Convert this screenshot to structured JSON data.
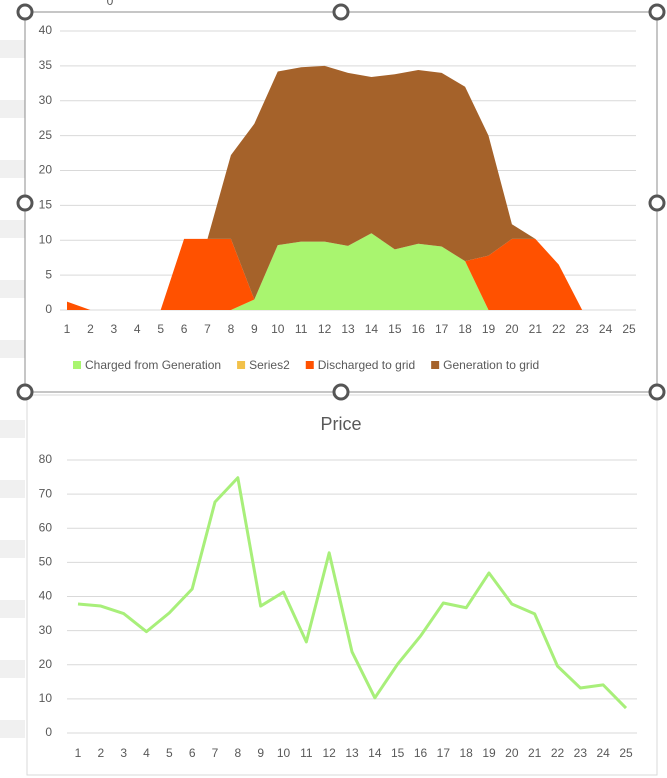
{
  "header_text": "0",
  "chart_data": [
    {
      "type": "stacked_area",
      "categories": [
        "1",
        "2",
        "3",
        "4",
        "5",
        "6",
        "7",
        "8",
        "9",
        "10",
        "11",
        "12",
        "13",
        "14",
        "15",
        "16",
        "17",
        "18",
        "19",
        "20",
        "21",
        "22",
        "23",
        "24",
        "25"
      ],
      "series": [
        {
          "name": "Charged from Generation",
          "color": "#a9f56f",
          "values": [
            0,
            0,
            0,
            0,
            0,
            0,
            0,
            0,
            1.5,
            9.3,
            9.8,
            9.8,
            9.2,
            11,
            8.7,
            9.5,
            9.1,
            7,
            0,
            0,
            0,
            0,
            0,
            0,
            0
          ]
        },
        {
          "name": "Series2",
          "color": "#f2c14a",
          "values": [
            0,
            0,
            0,
            0,
            0,
            0,
            0,
            0,
            0,
            0,
            0,
            0,
            0,
            0,
            0,
            0,
            0,
            0,
            0,
            0,
            0,
            0,
            0,
            0,
            0
          ]
        },
        {
          "name": "Discharged to grid",
          "color": "#ff5100",
          "values": [
            1.2,
            0,
            0,
            0,
            0,
            10.2,
            10.2,
            10.2,
            0,
            0,
            0,
            0,
            0,
            0,
            0,
            0,
            0,
            0,
            7.8,
            10.2,
            10.2,
            6.5,
            0,
            0,
            0
          ]
        },
        {
          "name": "Generation to grid",
          "color": "#a5622a",
          "values": [
            0,
            0,
            0,
            0,
            0,
            0,
            0,
            12,
            25.2,
            24.9,
            25,
            25.2,
            24.8,
            22.4,
            25.1,
            24.9,
            24.9,
            25,
            17.2,
            2.1,
            0,
            0,
            0,
            0,
            0
          ]
        }
      ],
      "ylim": [
        0,
        40
      ],
      "yticks": [
        0,
        5,
        10,
        15,
        20,
        25,
        30,
        35,
        40
      ],
      "grid": true,
      "legend": "bottom"
    },
    {
      "type": "line",
      "title": "Price",
      "categories": [
        "1",
        "2",
        "3",
        "4",
        "5",
        "6",
        "7",
        "8",
        "9",
        "10",
        "11",
        "12",
        "13",
        "14",
        "15",
        "16",
        "17",
        "18",
        "19",
        "20",
        "21",
        "22",
        "23",
        "24",
        "25"
      ],
      "series": [
        {
          "name": "Price",
          "color": "#a8ef7a",
          "values": [
            37.8,
            37.2,
            35,
            29.7,
            35.2,
            42.2,
            67.7,
            74.8,
            37.2,
            41.3,
            26.7,
            52.8,
            23.8,
            10.3,
            20.2,
            28.4,
            38.1,
            36.7,
            46.9,
            37.8,
            34.9,
            19.6,
            13.2,
            14.1,
            7.3
          ]
        }
      ],
      "ylim": [
        0,
        80
      ],
      "yticks": [
        0,
        10,
        20,
        30,
        40,
        50,
        60,
        70,
        80
      ],
      "grid": true
    }
  ]
}
